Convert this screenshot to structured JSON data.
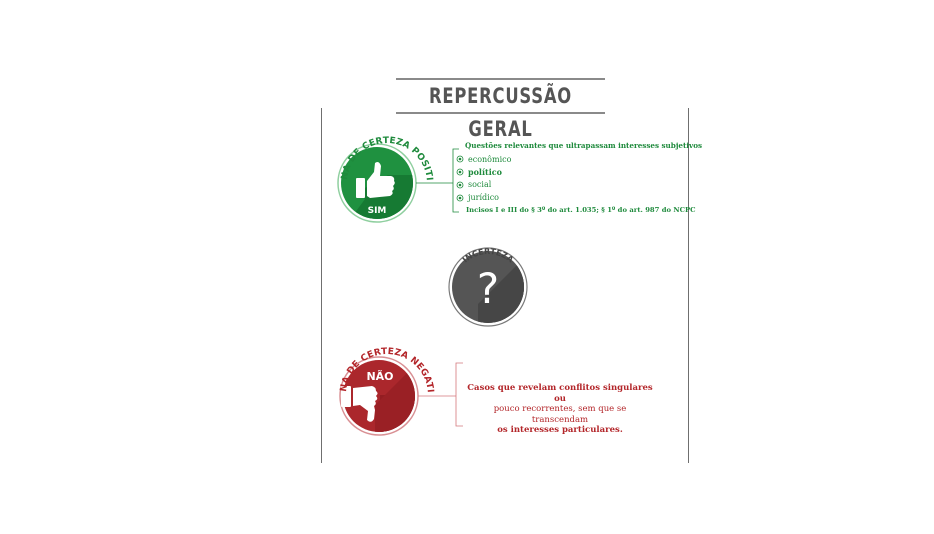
{
  "title": "REPERCUSSÃO GERAL",
  "positive_zone": {
    "arc_label": "ZONA DE CERTEZA POSITIVA",
    "badge": "SIM",
    "heading": "Questões relevantes que ultrapassam interesses subjetivos",
    "items": [
      "econômico",
      "político",
      "social",
      "jurídico"
    ],
    "footer": "Incisos I e III do § 3º do art. 1.035; § 1º do art. 987 do NCPC",
    "icon": "thumbs-up-icon",
    "color": "#1e8a3c"
  },
  "uncertain_zone": {
    "arc_label": "INCERTEZA",
    "symbol": "?",
    "color": "#4a4a4a"
  },
  "negative_zone": {
    "arc_label": "ZONA DE CERTEZA NEGATIVA",
    "badge": "NÃO",
    "description_lines": [
      "Casos que revelam conflitos singulares ou",
      "pouco recorrentes, sem que se transcendam",
      "os interesses particulares."
    ],
    "icon": "thumbs-down-icon",
    "color": "#a8262b"
  }
}
